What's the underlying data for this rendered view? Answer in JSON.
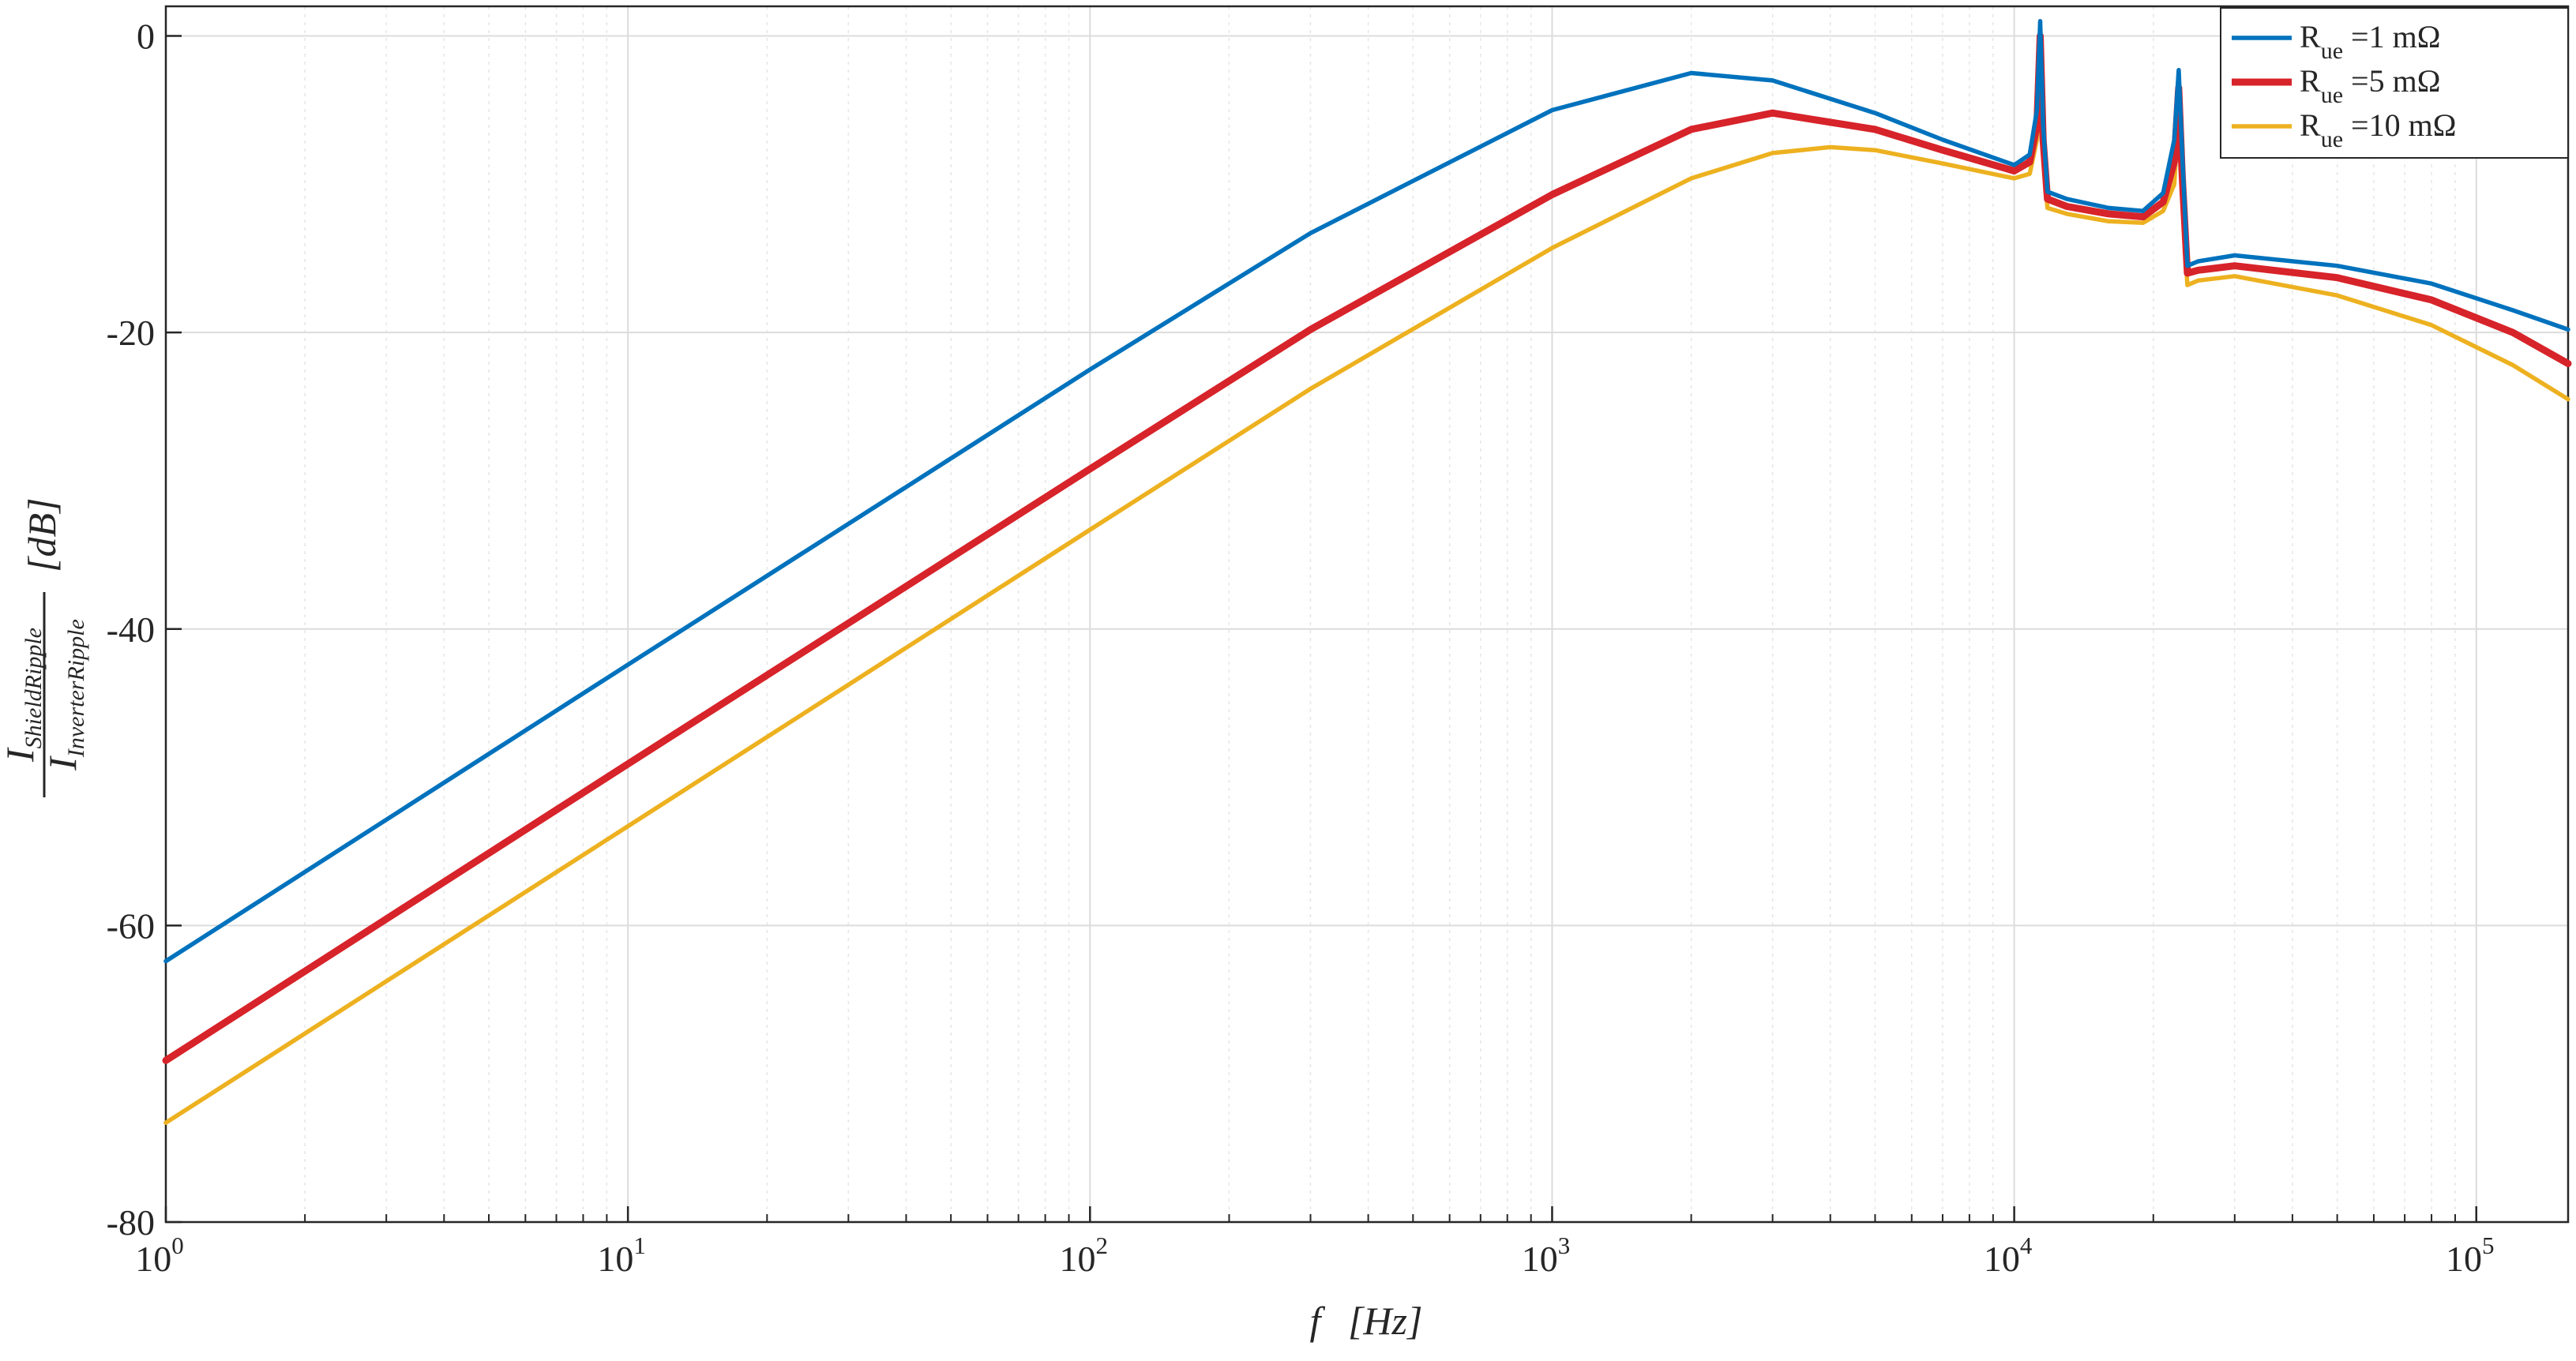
{
  "chart_data": {
    "type": "line",
    "title": "",
    "xlabel": {
      "var": "f",
      "unit": "Hz"
    },
    "ylabel": {
      "num": "I",
      "num_sub": "ShieldRipple",
      "den": "I",
      "den_sub": "InverterRipple",
      "unit": "dB"
    },
    "x_scale": "log",
    "xlim": [
      1,
      158000
    ],
    "ylim": [
      -80,
      2
    ],
    "x_ticks": [
      {
        "base": "10",
        "exp": "0",
        "value": 1
      },
      {
        "base": "10",
        "exp": "1",
        "value": 10
      },
      {
        "base": "10",
        "exp": "2",
        "value": 100
      },
      {
        "base": "10",
        "exp": "3",
        "value": 1000
      },
      {
        "base": "10",
        "exp": "4",
        "value": 10000
      },
      {
        "base": "10",
        "exp": "5",
        "value": 100000
      }
    ],
    "y_ticks": [
      {
        "label": "0",
        "value": 0
      },
      {
        "label": "-20",
        "value": -20
      },
      {
        "label": "-40",
        "value": -40
      },
      {
        "label": "-60",
        "value": -60
      },
      {
        "label": "-80",
        "value": -80
      }
    ],
    "grid": true,
    "legend_position": "top-right",
    "series": [
      {
        "name": "R_ue =1 mΩ",
        "legend_main": "R",
        "legend_sub": "ue",
        "legend_rest": " =1 mΩ",
        "color": "#0072BD",
        "points": [
          [
            1,
            -62.4
          ],
          [
            10,
            -42.4
          ],
          [
            100,
            -22.5
          ],
          [
            300,
            -13.3
          ],
          [
            1000,
            -5.0
          ],
          [
            2000,
            -2.5
          ],
          [
            3000,
            -3.0
          ],
          [
            5000,
            -5.2
          ],
          [
            7000,
            -7.0
          ],
          [
            10000,
            -8.7
          ],
          [
            10800,
            -8.0
          ],
          [
            11200,
            -5.0
          ],
          [
            11380,
            1.0
          ],
          [
            11550,
            -6.0
          ],
          [
            11800,
            -10.5
          ],
          [
            13000,
            -11.0
          ],
          [
            16000,
            -11.6
          ],
          [
            19000,
            -11.8
          ],
          [
            21000,
            -10.6
          ],
          [
            22200,
            -7.0
          ],
          [
            22700,
            -2.3
          ],
          [
            23100,
            -8.0
          ],
          [
            23700,
            -15.5
          ],
          [
            25000,
            -15.2
          ],
          [
            30000,
            -14.8
          ],
          [
            50000,
            -15.5
          ],
          [
            80000,
            -16.7
          ],
          [
            120000,
            -18.5
          ],
          [
            158000,
            -19.8
          ]
        ]
      },
      {
        "name": "R_ue =5 mΩ",
        "legend_main": "R",
        "legend_sub": "ue",
        "legend_rest": " =5 mΩ",
        "color": "#D7232A",
        "points": [
          [
            1,
            -69.1
          ],
          [
            10,
            -49.1
          ],
          [
            100,
            -29.2
          ],
          [
            300,
            -19.8
          ],
          [
            1000,
            -10.7
          ],
          [
            2000,
            -6.3
          ],
          [
            3000,
            -5.2
          ],
          [
            5000,
            -6.3
          ],
          [
            7000,
            -7.7
          ],
          [
            10000,
            -9.1
          ],
          [
            10800,
            -8.5
          ],
          [
            11200,
            -6.0
          ],
          [
            11380,
            0.0
          ],
          [
            11550,
            -7.0
          ],
          [
            11800,
            -11.0
          ],
          [
            13000,
            -11.5
          ],
          [
            16000,
            -12.0
          ],
          [
            19000,
            -12.2
          ],
          [
            21000,
            -11.2
          ],
          [
            22200,
            -8.5
          ],
          [
            22700,
            -3.5
          ],
          [
            23100,
            -9.5
          ],
          [
            23700,
            -16.0
          ],
          [
            25000,
            -15.8
          ],
          [
            30000,
            -15.5
          ],
          [
            50000,
            -16.3
          ],
          [
            80000,
            -17.8
          ],
          [
            120000,
            -20.0
          ],
          [
            158000,
            -22.1
          ]
        ]
      },
      {
        "name": "R_ue =10 mΩ",
        "legend_main": "R",
        "legend_sub": "ue",
        "legend_rest": " =10 mΩ",
        "color": "#EDB120",
        "points": [
          [
            1,
            -73.3
          ],
          [
            10,
            -53.3
          ],
          [
            100,
            -33.3
          ],
          [
            300,
            -23.8
          ],
          [
            1000,
            -14.3
          ],
          [
            2000,
            -9.6
          ],
          [
            3000,
            -7.9
          ],
          [
            4000,
            -7.5
          ],
          [
            5000,
            -7.7
          ],
          [
            7000,
            -8.6
          ],
          [
            10000,
            -9.6
          ],
          [
            10800,
            -9.3
          ],
          [
            11200,
            -7.0
          ],
          [
            11380,
            -1.2
          ],
          [
            11550,
            -8.0
          ],
          [
            11800,
            -11.6
          ],
          [
            13000,
            -12.0
          ],
          [
            16000,
            -12.5
          ],
          [
            19000,
            -12.6
          ],
          [
            21000,
            -11.8
          ],
          [
            22200,
            -10.0
          ],
          [
            22700,
            -5.0
          ],
          [
            23100,
            -11.0
          ],
          [
            23700,
            -16.8
          ],
          [
            25000,
            -16.5
          ],
          [
            30000,
            -16.2
          ],
          [
            50000,
            -17.5
          ],
          [
            80000,
            -19.5
          ],
          [
            120000,
            -22.2
          ],
          [
            158000,
            -24.5
          ]
        ]
      }
    ]
  }
}
